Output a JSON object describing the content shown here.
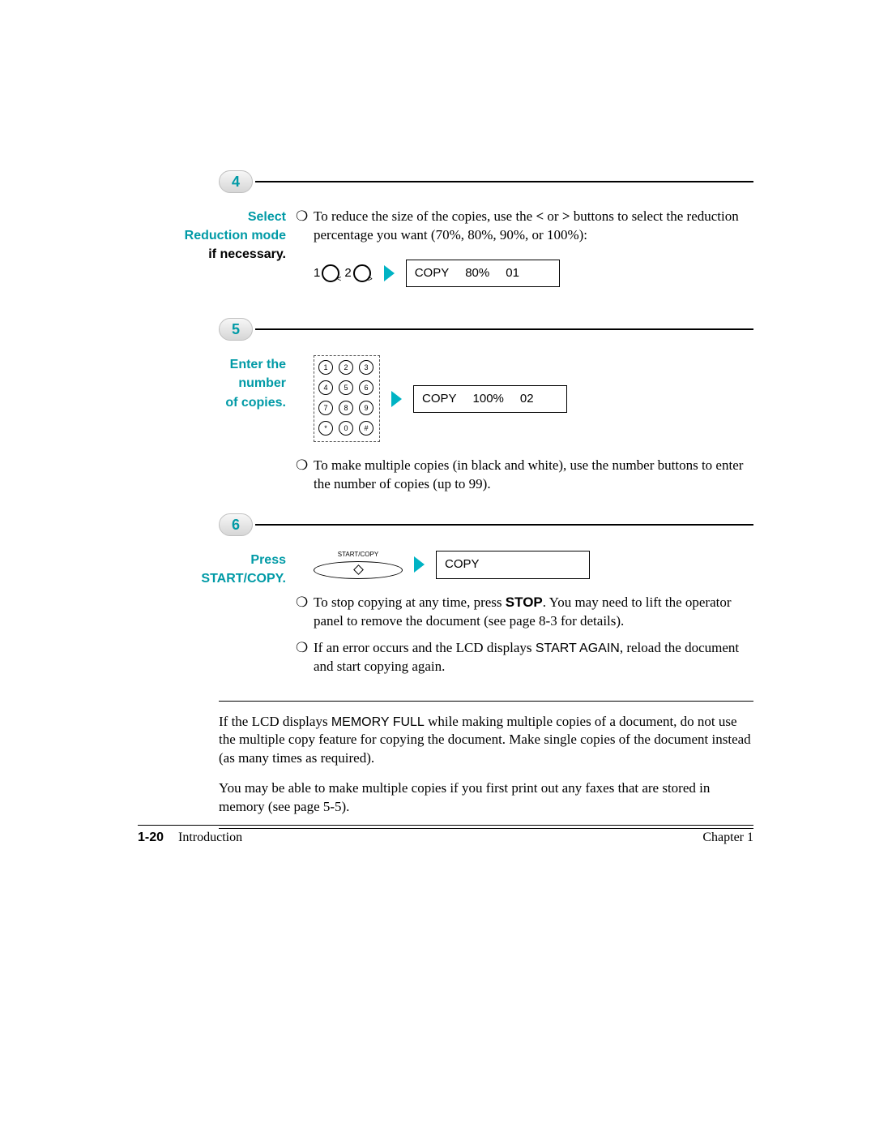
{
  "accent_color": "#009aa6",
  "step4": {
    "num": "4",
    "title_l1": "Select",
    "title_l2": "Reduction mode",
    "title_l3": "if necessary.",
    "bullet_pre": "To reduce the size of the copies, use the ",
    "bullet_bold1": "<",
    "bullet_mid": " or ",
    "bullet_bold2": ">",
    "bullet_post": " buttons to select the reduction percentage you want (70%, 80%, 90%, or 100%):",
    "dial1": "1",
    "dial2": "2",
    "lcd_a": "COPY",
    "lcd_b": "80%",
    "lcd_c": "01"
  },
  "step5": {
    "num": "5",
    "title_l1": "Enter the",
    "title_l2": "number",
    "title_l3": "of copies.",
    "lcd_a": "COPY",
    "lcd_b": "100%",
    "lcd_c": "02",
    "bullet": "To make multiple copies (in black and white), use the number buttons to enter the number of copies (up to 99).",
    "keys": [
      "1",
      "2",
      "3",
      "4",
      "5",
      "6",
      "7",
      "8",
      "9",
      "*",
      "0",
      "#"
    ]
  },
  "step6": {
    "num": "6",
    "title_l1": "Press",
    "title_l2": "START/COPY.",
    "btn_label": "START/COPY",
    "lcd_a": "COPY",
    "b1_pre": "To stop copying at any time, press ",
    "b1_bold": "STOP",
    "b1_post": ". You may need to lift the operator panel to remove the document (see page 8-3 for details).",
    "b2_pre": "If an error occurs and the LCD displays ",
    "b2_mono": "START AGAIN",
    "b2_post": ", reload the document and start copying again."
  },
  "note1_pre": "If the LCD displays ",
  "note1_mono": "MEMORY FULL",
  "note1_post": " while making multiple copies of a document, do not use the multiple copy feature for copying the document. Make single copies of the document instead (as many times as required).",
  "note2": "You may be able to make multiple copies if you first print out any faxes that are stored in memory (see page 5-5).",
  "footer": {
    "pageno": "1-20",
    "section": "Introduction",
    "chapter": "Chapter 1"
  }
}
